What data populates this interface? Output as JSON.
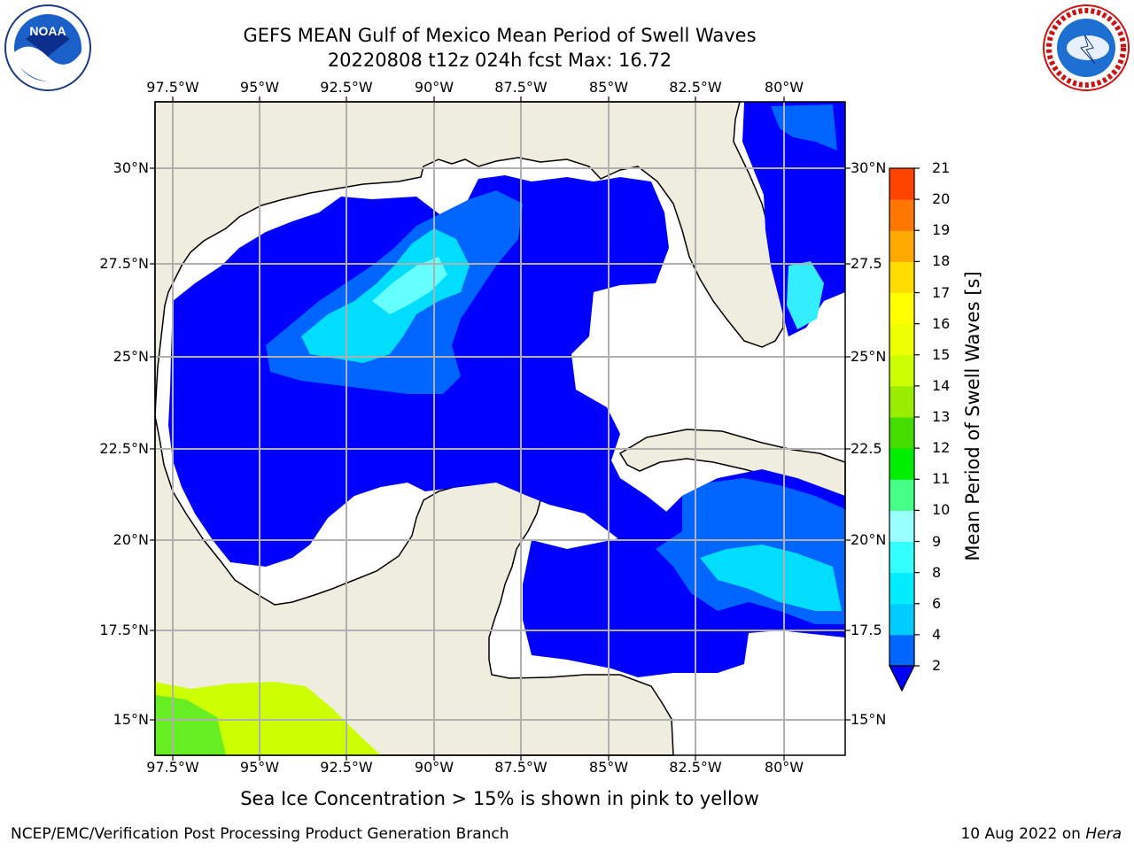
{
  "header": {
    "title_line1": "GEFS MEAN Gulf of Mexico Mean Period of Swell Waves",
    "title_line2": "20220808 t12z 024h fcst   Max: 16.72"
  },
  "logos": {
    "left": {
      "icon": "noaa-logo-icon",
      "text": "NOAA"
    },
    "right": {
      "icon": "nws-logo-icon",
      "text": "NATIONAL WEATHER SERVICE"
    }
  },
  "map": {
    "lon_labels": [
      "97.5°W",
      "95°W",
      "92.5°W",
      "90°W",
      "87.5°W",
      "85°W",
      "82.5°W",
      "80°W"
    ],
    "lat_labels_left": [
      "30°N",
      "27.5°N",
      "25°N",
      "22.5°N",
      "20°N",
      "17.5°N",
      "15°N"
    ],
    "lat_labels_right": [
      "30°N",
      "27.5",
      "25°N",
      "22.5",
      "20°N",
      "17.5",
      "15°N"
    ],
    "colors": {
      "land": "#efedde",
      "ocean_no_swell": "#ffffff",
      "grid": "#b0b0b0",
      "coast": "#000000"
    }
  },
  "colorbar": {
    "label": "Mean Period of Swell Waves [s]",
    "ticks": [
      "2",
      "4",
      "6",
      "8",
      "9",
      "10",
      "11",
      "12",
      "13",
      "14",
      "15",
      "16",
      "17",
      "18",
      "19",
      "20",
      "21"
    ],
    "colors": [
      "#0000ff",
      "#0066ff",
      "#00ccff",
      "#00eeff",
      "#33ffff",
      "#99ffff",
      "#44ff88",
      "#00ee00",
      "#44dd00",
      "#99ee00",
      "#ccff00",
      "#eeff00",
      "#ffff00",
      "#ffdd00",
      "#ffaa00",
      "#ff7700",
      "#ff4400",
      "#ff1100"
    ]
  },
  "note": "Sea Ice Concentration > 15% is shown in pink to yellow",
  "footer": {
    "left": "NCEP/EMC/Verification Post Processing Product Generation Branch",
    "right_date": "10 Aug 2022 on ",
    "right_host": "Hera"
  }
}
